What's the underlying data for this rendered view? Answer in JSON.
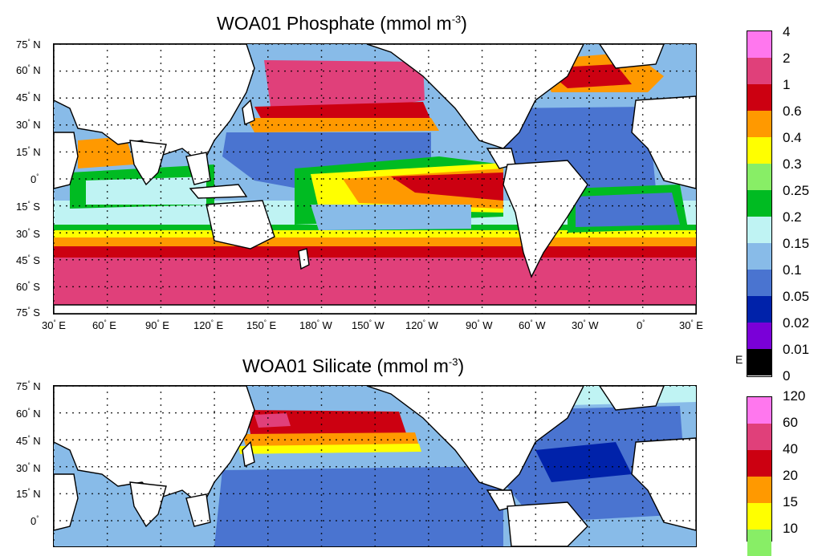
{
  "phosphate": {
    "title_main": "WOA01 Phosphate (mmol m",
    "title_exp": "-3",
    "title_close": ")",
    "lat_labels": [
      {
        "deg": "75",
        "hem": "N"
      },
      {
        "deg": "60",
        "hem": "N"
      },
      {
        "deg": "45",
        "hem": "N"
      },
      {
        "deg": "30",
        "hem": "N"
      },
      {
        "deg": "15",
        "hem": "N"
      },
      {
        "deg": "0",
        "hem": ""
      },
      {
        "deg": "15",
        "hem": "S"
      },
      {
        "deg": "30",
        "hem": "S"
      },
      {
        "deg": "45",
        "hem": "S"
      },
      {
        "deg": "60",
        "hem": "S"
      },
      {
        "deg": "75",
        "hem": "S"
      }
    ],
    "lon_labels": [
      {
        "deg": "30",
        "hem": "E"
      },
      {
        "deg": "60",
        "hem": "E"
      },
      {
        "deg": "90",
        "hem": "E"
      },
      {
        "deg": "120",
        "hem": "E"
      },
      {
        "deg": "150",
        "hem": "E"
      },
      {
        "deg": "180",
        "hem": "W"
      },
      {
        "deg": "150",
        "hem": "W"
      },
      {
        "deg": "120",
        "hem": "W"
      },
      {
        "deg": "90",
        "hem": "W"
      },
      {
        "deg": "60",
        "hem": "W"
      },
      {
        "deg": "30",
        "hem": "W"
      },
      {
        "deg": "0",
        "hem": ""
      },
      {
        "deg": "30",
        "hem": "E"
      }
    ],
    "colorbar": {
      "values": [
        "4",
        "2",
        "1",
        "0.6",
        "0.4",
        "0.3",
        "0.25",
        "0.2",
        "0.15",
        "0.1",
        "0.05",
        "0.02",
        "0.01",
        "0"
      ],
      "colors": [
        "#ff77ee",
        "#e0407a",
        "#cc0011",
        "#ff9900",
        "#ffff00",
        "#88ee66",
        "#00bb22",
        "#bff3f3",
        "#88bbe8",
        "#4a74d0",
        "#0022aa",
        "#7a00d8",
        "#000000"
      ],
      "extra_label": "E"
    }
  },
  "silicate": {
    "title_main": "WOA01 Silicate (mmol m",
    "title_exp": "-3",
    "title_close": ")",
    "lat_labels": [
      {
        "deg": "75",
        "hem": "N"
      },
      {
        "deg": "60",
        "hem": "N"
      },
      {
        "deg": "45",
        "hem": "N"
      },
      {
        "deg": "30",
        "hem": "N"
      },
      {
        "deg": "15",
        "hem": "N"
      },
      {
        "deg": "0",
        "hem": ""
      }
    ],
    "colorbar": {
      "values": [
        "120",
        "60",
        "40",
        "20",
        "15",
        "10"
      ],
      "colors": [
        "#ff77ee",
        "#e0407a",
        "#cc0011",
        "#ff9900",
        "#ffff00",
        "#88ee66"
      ]
    }
  },
  "palette": {
    "land": "#ffffff",
    "pink": "#e0407a",
    "red": "#cc0011",
    "orange": "#ff9900",
    "yellow": "#ffff00",
    "lightgreen": "#88ee66",
    "green": "#00bb22",
    "cyan": "#bff3f3",
    "lightblue": "#88bbe8",
    "blue": "#4a74d0",
    "navy": "#0022aa"
  }
}
